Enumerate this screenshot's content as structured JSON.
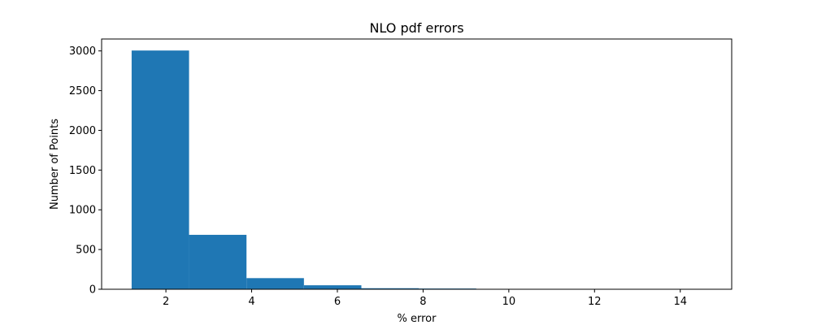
{
  "chart_data": {
    "type": "bar",
    "subtype": "histogram",
    "title": "NLO pdf errors",
    "xlabel": "% error",
    "ylabel": "Number of Points",
    "xlim": [
      0.5,
      15.2
    ],
    "ylim": [
      0,
      3150
    ],
    "xticks": [
      2,
      4,
      6,
      8,
      10,
      12,
      14
    ],
    "yticks": [
      0,
      500,
      1000,
      1500,
      2000,
      2500,
      3000
    ],
    "bin_edges": [
      1.2,
      2.54,
      3.88,
      5.22,
      6.56,
      7.9,
      9.24,
      10.58,
      11.92,
      13.26,
      14.6
    ],
    "values": [
      3005,
      685,
      140,
      50,
      13,
      9,
      4,
      1,
      1,
      1
    ],
    "color": "#1f77b4",
    "grid": false
  }
}
